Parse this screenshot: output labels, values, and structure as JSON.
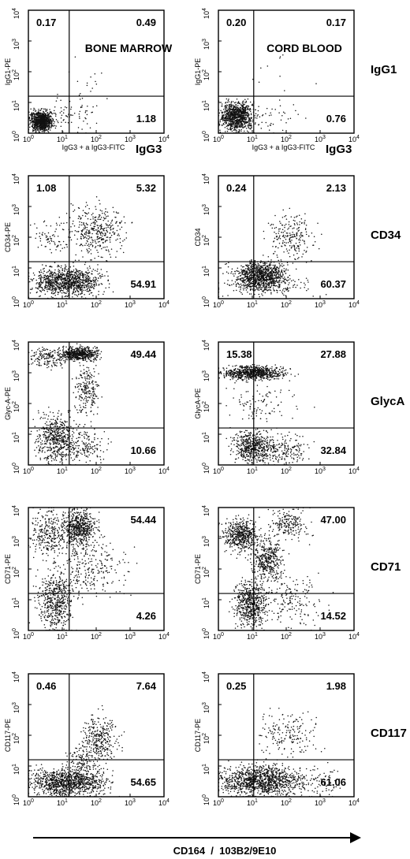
{
  "chart_data": [
    {
      "type": "scatter",
      "title": "",
      "row": "IgG1",
      "column": "bone-marrow",
      "source_label": "BONE MARROW",
      "ylabel": "IgG1-PE",
      "xlabel": "IgG3 + a IgG3-FITC",
      "control_label": "IgG3",
      "x_scale": "log",
      "y_scale": "log",
      "xlim": [
        1,
        10000
      ],
      "ylim": [
        1,
        10000
      ],
      "x_ticks": [
        "10",
        "10",
        "10",
        "10",
        "10"
      ],
      "x_tick_exp": [
        "0",
        "1",
        "2",
        "3",
        "4"
      ],
      "y_ticks": [
        "10",
        "10",
        "10",
        "10",
        "10"
      ],
      "y_tick_exp": [
        "0",
        "1",
        "2",
        "3",
        "4"
      ],
      "gate": {
        "x": 16,
        "y": 16
      },
      "quadrant_percent": {
        "upper_left": "0.17",
        "upper_right": "0.49",
        "lower_left": "",
        "lower_right": "1.18"
      },
      "populations": [
        {
          "n": 900,
          "x": [
            1.2,
            5
          ],
          "y": [
            1.2,
            5
          ]
        },
        {
          "n": 80,
          "x": [
            2,
            80
          ],
          "y": [
            1.1,
            12
          ]
        },
        {
          "n": 14,
          "x": [
            15,
            200
          ],
          "y": [
            15,
            300
          ]
        }
      ]
    },
    {
      "type": "scatter",
      "title": "",
      "row": "IgG1",
      "column": "cord-blood",
      "source_label": "CORD BLOOD",
      "ylabel": "IgG1-PE",
      "xlabel": "IgG3 + a IgG3-FITC",
      "control_label": "IgG3",
      "x_scale": "log",
      "y_scale": "log",
      "xlim": [
        1,
        10000
      ],
      "ylim": [
        1,
        10000
      ],
      "x_ticks": [
        "10",
        "10",
        "10",
        "10",
        "10"
      ],
      "x_tick_exp": [
        "0",
        "1",
        "2",
        "3",
        "4"
      ],
      "y_ticks": [
        "10",
        "10",
        "10",
        "10",
        "10"
      ],
      "y_tick_exp": [
        "0",
        "1",
        "2",
        "3",
        "4"
      ],
      "gate": {
        "x": 11,
        "y": 16
      },
      "quadrant_percent": {
        "upper_left": "0.20",
        "upper_right": "0.17",
        "lower_left": "",
        "lower_right": "0.76"
      },
      "populations": [
        {
          "n": 900,
          "x": [
            1.2,
            10
          ],
          "y": [
            1.2,
            10
          ]
        },
        {
          "n": 40,
          "x": [
            10,
            300
          ],
          "y": [
            1.1,
            12
          ]
        },
        {
          "n": 10,
          "x": [
            3,
            500
          ],
          "y": [
            20,
            600
          ]
        }
      ]
    },
    {
      "type": "scatter",
      "title": "",
      "row": "CD34",
      "column": "bone-marrow",
      "source_label": "",
      "ylabel": "CD34-PE",
      "xlabel": "",
      "control_label": "",
      "x_scale": "log",
      "y_scale": "log",
      "xlim": [
        1,
        10000
      ],
      "ylim": [
        1,
        10000
      ],
      "x_ticks": [
        "10",
        "10",
        "10",
        "10",
        "10"
      ],
      "x_tick_exp": [
        "0",
        "1",
        "2",
        "3",
        "4"
      ],
      "y_ticks": [
        "10",
        "10",
        "10",
        "10",
        "10"
      ],
      "y_tick_exp": [
        "0",
        "1",
        "2",
        "3",
        "4"
      ],
      "gate": {
        "x": 16,
        "y": 16
      },
      "quadrant_percent": {
        "upper_left": "1.08",
        "upper_right": "5.32",
        "lower_left": "",
        "lower_right": "54.91"
      },
      "populations": [
        {
          "n": 1000,
          "x": [
            1.5,
            120
          ],
          "y": [
            1.2,
            10
          ]
        },
        {
          "n": 380,
          "x": [
            15,
            600
          ],
          "y": [
            25,
            1000
          ]
        },
        {
          "n": 70,
          "x": [
            1.3,
            15
          ],
          "y": [
            20,
            400
          ]
        }
      ]
    },
    {
      "type": "scatter",
      "title": "",
      "row": "CD34",
      "column": "cord-blood",
      "source_label": "",
      "ylabel": "CD34",
      "xlabel": "",
      "control_label": "",
      "x_scale": "log",
      "y_scale": "log",
      "xlim": [
        1,
        10000
      ],
      "ylim": [
        1,
        10000
      ],
      "x_ticks": [
        "10",
        "10",
        "10",
        "10",
        "10"
      ],
      "x_tick_exp": [
        "0",
        "1",
        "2",
        "3",
        "4"
      ],
      "y_ticks": [
        "10",
        "10",
        "10",
        "10",
        "10"
      ],
      "y_tick_exp": [
        "0",
        "1",
        "2",
        "3",
        "4"
      ],
      "gate": {
        "x": 11,
        "y": 16
      },
      "quadrant_percent": {
        "upper_left": "0.24",
        "upper_right": "2.13",
        "lower_left": "",
        "lower_right": "60.37"
      },
      "populations": [
        {
          "n": 1000,
          "x": [
            3,
            100
          ],
          "y": [
            2,
            15
          ]
        },
        {
          "n": 220,
          "x": [
            30,
            800
          ],
          "y": [
            20,
            500
          ]
        },
        {
          "n": 120,
          "x": [
            1.3,
            600
          ],
          "y": [
            1.1,
            5
          ]
        }
      ]
    },
    {
      "type": "scatter",
      "title": "",
      "row": "GlycA",
      "column": "bone-marrow",
      "source_label": "",
      "ylabel": "Glyc-A-PE",
      "xlabel": "",
      "control_label": "",
      "x_scale": "log",
      "y_scale": "log",
      "xlim": [
        1,
        10000
      ],
      "ylim": [
        1,
        10000
      ],
      "x_ticks": [
        "10",
        "10",
        "10",
        "10",
        "10"
      ],
      "x_tick_exp": [
        "0",
        "1",
        "2",
        "3",
        "4"
      ],
      "y_ticks": [
        "10",
        "10",
        "10",
        "10",
        "10"
      ],
      "y_tick_exp": [
        "0",
        "1",
        "2",
        "3",
        "4"
      ],
      "gate": {
        "x": 16,
        "y": 16
      },
      "quadrant_percent": {
        "upper_left": "",
        "upper_right": "49.44",
        "lower_left": "",
        "lower_right": "10.66"
      },
      "populations": [
        {
          "n": 550,
          "x": [
            10,
            110
          ],
          "y": [
            2500,
            7000
          ]
        },
        {
          "n": 550,
          "x": [
            2,
            25
          ],
          "y": [
            1.1,
            40
          ]
        },
        {
          "n": 220,
          "x": [
            25,
            120
          ],
          "y": [
            40,
            2000
          ]
        },
        {
          "n": 160,
          "x": [
            1.2,
            10
          ],
          "y": [
            1500,
            6000
          ]
        },
        {
          "n": 140,
          "x": [
            16,
            200
          ],
          "y": [
            1.2,
            15
          ]
        }
      ]
    },
    {
      "type": "scatter",
      "title": "",
      "row": "GlycA",
      "column": "cord-blood",
      "source_label": "",
      "ylabel": "GlycA-PE",
      "xlabel": "",
      "control_label": "",
      "x_scale": "log",
      "y_scale": "log",
      "xlim": [
        1,
        10000
      ],
      "ylim": [
        1,
        10000
      ],
      "x_ticks": [
        "10",
        "10",
        "10",
        "10",
        "10"
      ],
      "x_tick_exp": [
        "0",
        "1",
        "2",
        "3",
        "4"
      ],
      "y_ticks": [
        "10",
        "10",
        "10",
        "10",
        "10"
      ],
      "y_tick_exp": [
        "0",
        "1",
        "2",
        "3",
        "4"
      ],
      "gate": {
        "x": 11,
        "y": 16
      },
      "quadrant_percent": {
        "upper_left": "15.38",
        "upper_right": "27.88",
        "lower_left": "",
        "lower_right": "32.84"
      },
      "populations": [
        {
          "n": 750,
          "x": [
            1.5,
            80
          ],
          "y": [
            600,
            1600
          ]
        },
        {
          "n": 550,
          "x": [
            3,
            40
          ],
          "y": [
            1.2,
            12
          ]
        },
        {
          "n": 160,
          "x": [
            20,
            400
          ],
          "y": [
            1.2,
            10
          ]
        },
        {
          "n": 100,
          "x": [
            1.5,
            200
          ],
          "y": [
            20,
            400
          ]
        }
      ]
    },
    {
      "type": "scatter",
      "title": "",
      "row": "CD71",
      "column": "bone-marrow",
      "source_label": "",
      "ylabel": "CD71-PE",
      "xlabel": "",
      "control_label": "",
      "x_scale": "log",
      "y_scale": "log",
      "xlim": [
        1,
        10000
      ],
      "ylim": [
        1,
        10000
      ],
      "x_ticks": [
        "10",
        "10",
        "10",
        "10",
        "10"
      ],
      "x_tick_exp": [
        "0",
        "1",
        "2",
        "3",
        "4"
      ],
      "y_ticks": [
        "10",
        "10",
        "10",
        "10",
        "10"
      ],
      "y_tick_exp": [
        "0",
        "1",
        "2",
        "3",
        "4"
      ],
      "gate": {
        "x": 16,
        "y": 16
      },
      "quadrant_percent": {
        "upper_left": "",
        "upper_right": "54.44",
        "lower_left": "",
        "lower_right": "4.26"
      },
      "populations": [
        {
          "n": 600,
          "x": [
            10,
            100
          ],
          "y": [
            500,
            8000
          ]
        },
        {
          "n": 500,
          "x": [
            2,
            20
          ],
          "y": [
            1.2,
            50
          ]
        },
        {
          "n": 260,
          "x": [
            1.2,
            12
          ],
          "y": [
            300,
            8000
          ]
        },
        {
          "n": 300,
          "x": [
            3,
            600
          ],
          "y": [
            10,
            800
          ]
        }
      ]
    },
    {
      "type": "scatter",
      "title": "",
      "row": "CD71",
      "column": "cord-blood",
      "source_label": "",
      "ylabel": "CD71-PE",
      "xlabel": "",
      "control_label": "",
      "x_scale": "log",
      "y_scale": "log",
      "xlim": [
        1,
        10000
      ],
      "ylim": [
        1,
        10000
      ],
      "x_ticks": [
        "10",
        "10",
        "10",
        "10",
        "10"
      ],
      "x_tick_exp": [
        "0",
        "1",
        "2",
        "3",
        "4"
      ],
      "y_ticks": [
        "10",
        "10",
        "10",
        "10",
        "10"
      ],
      "y_tick_exp": [
        "0",
        "1",
        "2",
        "3",
        "4"
      ],
      "gate": {
        "x": 11,
        "y": 16
      },
      "quadrant_percent": {
        "upper_left": "",
        "upper_right": "47.00",
        "lower_left": "",
        "lower_right": "14.52"
      },
      "populations": [
        {
          "n": 520,
          "x": [
            1.5,
            15
          ],
          "y": [
            400,
            4000
          ]
        },
        {
          "n": 600,
          "x": [
            3,
            30
          ],
          "y": [
            1.2,
            40
          ]
        },
        {
          "n": 400,
          "x": [
            10,
            80
          ],
          "y": [
            40,
            800
          ]
        },
        {
          "n": 200,
          "x": [
            30,
            400
          ],
          "y": [
            1000,
            9000
          ]
        },
        {
          "n": 160,
          "x": [
            30,
            1000
          ],
          "y": [
            1.5,
            50
          ]
        }
      ]
    },
    {
      "type": "scatter",
      "title": "",
      "row": "CD117",
      "column": "bone-marrow",
      "source_label": "",
      "ylabel": "CD117-PE",
      "xlabel": "",
      "control_label": "",
      "x_scale": "log",
      "y_scale": "log",
      "xlim": [
        1,
        10000
      ],
      "ylim": [
        1,
        10000
      ],
      "x_ticks": [
        "10",
        "10",
        "10",
        "10",
        "10"
      ],
      "x_tick_exp": [
        "0",
        "1",
        "2",
        "3",
        "4"
      ],
      "y_ticks": [
        "10",
        "10",
        "10",
        "10",
        "10"
      ],
      "y_tick_exp": [
        "0",
        "1",
        "2",
        "3",
        "4"
      ],
      "gate": {
        "x": 16,
        "y": 16
      },
      "quadrant_percent": {
        "upper_left": "0.46",
        "upper_right": "7.64",
        "lower_left": "",
        "lower_right": "54.65"
      },
      "populations": [
        {
          "n": 1050,
          "x": [
            1.2,
            150
          ],
          "y": [
            1.1,
            8
          ]
        },
        {
          "n": 320,
          "x": [
            40,
            400
          ],
          "y": [
            15,
            400
          ]
        },
        {
          "n": 100,
          "x": [
            15,
            100
          ],
          "y": [
            5,
            40
          ]
        }
      ]
    },
    {
      "type": "scatter",
      "title": "",
      "row": "CD117",
      "column": "cord-blood",
      "source_label": "",
      "ylabel": "CD117-PE",
      "xlabel": "",
      "control_label": "",
      "x_scale": "log",
      "y_scale": "log",
      "xlim": [
        1,
        10000
      ],
      "ylim": [
        1,
        10000
      ],
      "x_ticks": [
        "10",
        "10",
        "10",
        "10",
        "10"
      ],
      "x_tick_exp": [
        "0",
        "1",
        "2",
        "3",
        "4"
      ],
      "y_ticks": [
        "10",
        "10",
        "10",
        "10",
        "10"
      ],
      "y_tick_exp": [
        "0",
        "1",
        "2",
        "3",
        "4"
      ],
      "gate": {
        "x": 11,
        "y": 16
      },
      "quadrant_percent": {
        "upper_left": "0.25",
        "upper_right": "1.98",
        "lower_left": "",
        "lower_right": "61.06"
      },
      "populations": [
        {
          "n": 1150,
          "x": [
            1.2,
            300
          ],
          "y": [
            1.1,
            10
          ]
        },
        {
          "n": 170,
          "x": [
            20,
            800
          ],
          "y": [
            20,
            600
          ]
        },
        {
          "n": 80,
          "x": [
            300,
            5000
          ],
          "y": [
            1.1,
            10
          ]
        }
      ]
    }
  ],
  "figure": {
    "x_axis_title": "CD164  /  103B2/9E10"
  }
}
